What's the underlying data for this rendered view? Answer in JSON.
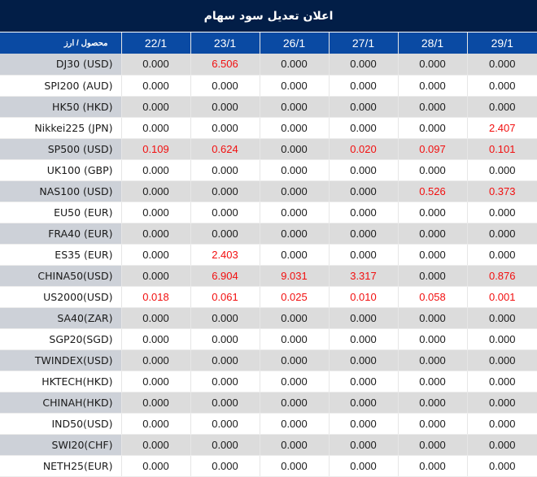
{
  "title": "اعلان تعدیل سود سهام",
  "colors": {
    "title_bg": "#021e47",
    "header_bg": "#0a4aa3",
    "shaded_row": "#dcdcdc",
    "shaded_label": "#cdd1d8",
    "highlight_value": "#f20f0f"
  },
  "table": {
    "label_header": "محصول / ارز",
    "date_headers": [
      "22/1",
      "23/1",
      "26/1",
      "27/1",
      "28/1",
      "29/1"
    ],
    "rows": [
      {
        "label": "DJ30 (USD)",
        "values": [
          "0.000",
          "6.506",
          "0.000",
          "0.000",
          "0.000",
          "0.000"
        ]
      },
      {
        "label": "SPI200 (AUD)",
        "values": [
          "0.000",
          "0.000",
          "0.000",
          "0.000",
          "0.000",
          "0.000"
        ]
      },
      {
        "label": "HK50 (HKD)",
        "values": [
          "0.000",
          "0.000",
          "0.000",
          "0.000",
          "0.000",
          "0.000"
        ]
      },
      {
        "label": "Nikkei225 (JPN)",
        "values": [
          "0.000",
          "0.000",
          "0.000",
          "0.000",
          "0.000",
          "2.407"
        ]
      },
      {
        "label": "SP500 (USD)",
        "values": [
          "0.109",
          "0.624",
          "0.000",
          "0.020",
          "0.097",
          "0.101"
        ]
      },
      {
        "label": "UK100 (GBP)",
        "values": [
          "0.000",
          "0.000",
          "0.000",
          "0.000",
          "0.000",
          "0.000"
        ]
      },
      {
        "label": "NAS100 (USD)",
        "values": [
          "0.000",
          "0.000",
          "0.000",
          "0.000",
          "0.526",
          "0.373"
        ]
      },
      {
        "label": "EU50 (EUR)",
        "values": [
          "0.000",
          "0.000",
          "0.000",
          "0.000",
          "0.000",
          "0.000"
        ]
      },
      {
        "label": "FRA40 (EUR)",
        "values": [
          "0.000",
          "0.000",
          "0.000",
          "0.000",
          "0.000",
          "0.000"
        ]
      },
      {
        "label": "ES35 (EUR)",
        "values": [
          "0.000",
          "2.403",
          "0.000",
          "0.000",
          "0.000",
          "0.000"
        ]
      },
      {
        "label": "CHINA50(USD)",
        "values": [
          "0.000",
          "6.904",
          "9.031",
          "3.317",
          "0.000",
          "0.876"
        ]
      },
      {
        "label": "US2000(USD)",
        "values": [
          "0.018",
          "0.061",
          "0.025",
          "0.010",
          "0.058",
          "0.001"
        ]
      },
      {
        "label": "SA40(ZAR)",
        "values": [
          "0.000",
          "0.000",
          "0.000",
          "0.000",
          "0.000",
          "0.000"
        ]
      },
      {
        "label": "SGP20(SGD)",
        "values": [
          "0.000",
          "0.000",
          "0.000",
          "0.000",
          "0.000",
          "0.000"
        ]
      },
      {
        "label": "TWINDEX(USD)",
        "values": [
          "0.000",
          "0.000",
          "0.000",
          "0.000",
          "0.000",
          "0.000"
        ]
      },
      {
        "label": "HKTECH(HKD)",
        "values": [
          "0.000",
          "0.000",
          "0.000",
          "0.000",
          "0.000",
          "0.000"
        ]
      },
      {
        "label": "CHINAH(HKD)",
        "values": [
          "0.000",
          "0.000",
          "0.000",
          "0.000",
          "0.000",
          "0.000"
        ]
      },
      {
        "label": "IND50(USD)",
        "values": [
          "0.000",
          "0.000",
          "0.000",
          "0.000",
          "0.000",
          "0.000"
        ]
      },
      {
        "label": "SWI20(CHF)",
        "values": [
          "0.000",
          "0.000",
          "0.000",
          "0.000",
          "0.000",
          "0.000"
        ]
      },
      {
        "label": "NETH25(EUR)",
        "values": [
          "0.000",
          "0.000",
          "0.000",
          "0.000",
          "0.000",
          "0.000"
        ]
      }
    ]
  }
}
